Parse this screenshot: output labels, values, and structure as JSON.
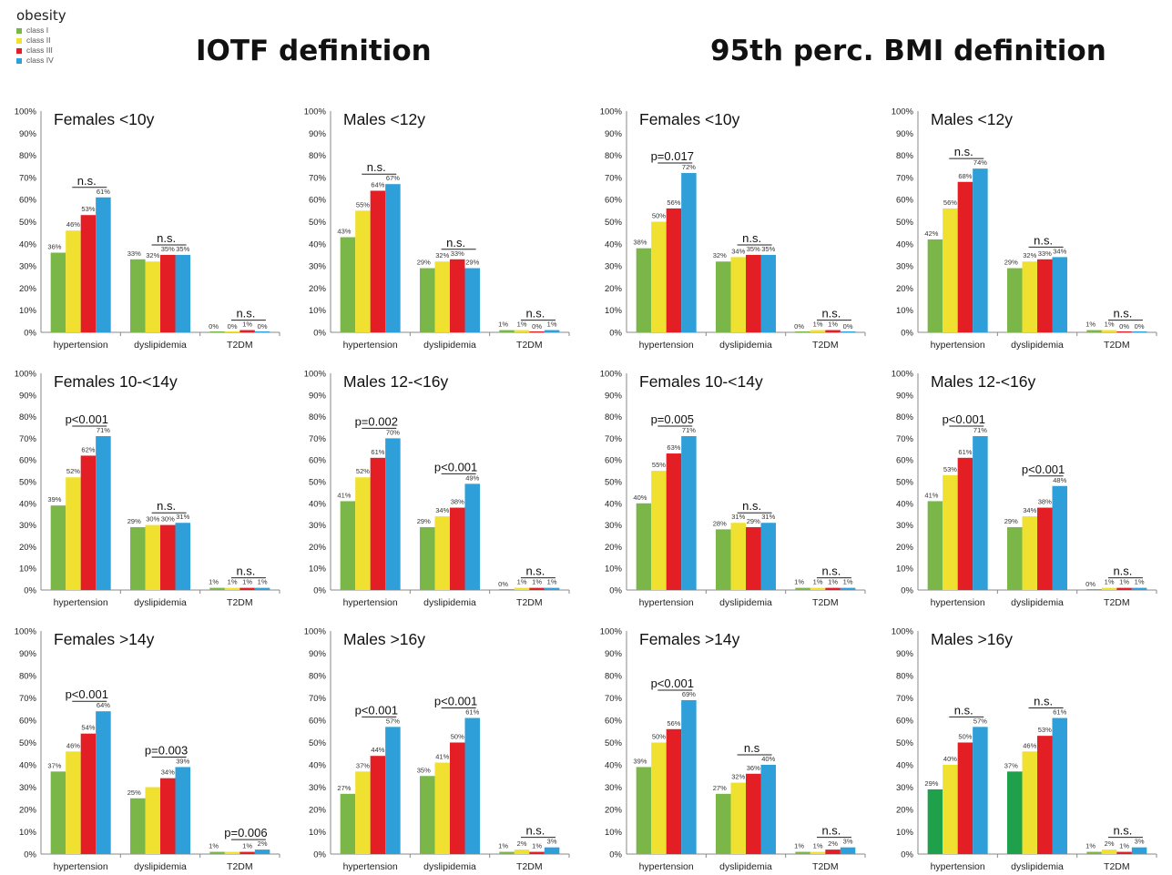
{
  "legend": {
    "title": "obesity",
    "items": [
      {
        "label": "class I",
        "color": "#7ab648"
      },
      {
        "label": "class II",
        "color": "#f0e130"
      },
      {
        "label": "class III",
        "color": "#e31e24"
      },
      {
        "label": "class IV",
        "color": "#2e9fd9"
      }
    ]
  },
  "headings": {
    "left": "IOTF definition",
    "right": "95th perc. BMI definition"
  },
  "chart_data": [
    {
      "type": "bar",
      "title": "Females <10y",
      "categories": [
        "hypertension",
        "dyslipidemia",
        "T2DM"
      ],
      "values": [
        [
          36,
          46,
          53,
          61
        ],
        [
          33,
          32,
          35,
          35
        ],
        [
          0,
          0,
          1,
          0
        ]
      ],
      "labels": [
        [
          "36%",
          "46%",
          "53%",
          "61%"
        ],
        [
          "33%",
          "32%",
          "35%",
          "35%"
        ],
        [
          "0%",
          "0%",
          "1%",
          "0%"
        ]
      ],
      "sig": [
        "n.s.",
        "n.s.",
        "n.s."
      ],
      "ylim": [
        0,
        100
      ],
      "yticks": [
        "0%",
        "10%",
        "20%",
        "30%",
        "40%",
        "50%",
        "60%",
        "70%",
        "80%",
        "90%",
        "100%"
      ]
    },
    {
      "type": "bar",
      "title": "Males <12y",
      "categories": [
        "hypertension",
        "dyslipidemia",
        "T2DM"
      ],
      "values": [
        [
          43,
          55,
          64,
          67
        ],
        [
          29,
          32,
          33,
          29
        ],
        [
          1,
          1,
          0,
          1
        ]
      ],
      "labels": [
        [
          "43%",
          "55%",
          "64%",
          "67%"
        ],
        [
          "29%",
          "32%",
          "33%",
          "29%"
        ],
        [
          "1%",
          "1%",
          "0%",
          "1%"
        ]
      ],
      "sig": [
        "n.s.",
        "n.s.",
        "n.s."
      ],
      "ylim": [
        0,
        100
      ],
      "yticks": [
        "0%",
        "10%",
        "20%",
        "30%",
        "40%",
        "50%",
        "60%",
        "70%",
        "80%",
        "90%",
        "100%"
      ]
    },
    {
      "type": "bar",
      "title": "Females <10y",
      "categories": [
        "hypertension",
        "dyslipidemia",
        "T2DM"
      ],
      "values": [
        [
          38,
          50,
          56,
          72
        ],
        [
          32,
          34,
          35,
          35
        ],
        [
          0,
          1,
          1,
          0
        ]
      ],
      "labels": [
        [
          "38%",
          "50%",
          "56%",
          "72%"
        ],
        [
          "32%",
          "34%",
          "35%",
          "35%"
        ],
        [
          "0%",
          "1%",
          "1%",
          "0%"
        ]
      ],
      "sig": [
        "p=0.017",
        "n.s.",
        "n.s."
      ],
      "ylim": [
        0,
        100
      ],
      "yticks": [
        "0%",
        "10%",
        "20%",
        "30%",
        "40%",
        "50%",
        "60%",
        "70%",
        "80%",
        "90%",
        "100%"
      ]
    },
    {
      "type": "bar",
      "title": "Males <12y",
      "categories": [
        "hypertension",
        "dyslipidemia",
        "T2DM"
      ],
      "values": [
        [
          42,
          56,
          68,
          74
        ],
        [
          29,
          32,
          33,
          34
        ],
        [
          1,
          1,
          0,
          0
        ]
      ],
      "labels": [
        [
          "42%",
          "56%",
          "68%",
          "74%"
        ],
        [
          "29%",
          "32%",
          "33%",
          "34%"
        ],
        [
          "1%",
          "1%",
          "0%",
          "0%"
        ]
      ],
      "sig": [
        "n.s.",
        "n.s.",
        "n.s."
      ],
      "ylim": [
        0,
        100
      ],
      "yticks": [
        "0%",
        "10%",
        "20%",
        "30%",
        "40%",
        "50%",
        "60%",
        "70%",
        "80%",
        "90%",
        "100%"
      ]
    },
    {
      "type": "bar",
      "title": "Females 10-<14y",
      "categories": [
        "hypertension",
        "dyslipidemia",
        "T2DM"
      ],
      "values": [
        [
          39,
          52,
          62,
          71
        ],
        [
          29,
          30,
          30,
          31
        ],
        [
          1,
          1,
          1,
          1
        ]
      ],
      "labels": [
        [
          "39%",
          "52%",
          "62%",
          "71%"
        ],
        [
          "29%",
          "30%",
          "30%",
          "31%"
        ],
        [
          "1%",
          "1%",
          "1%",
          "1%"
        ]
      ],
      "sig": [
        "p<0.001",
        "n.s.",
        "n.s."
      ],
      "ylim": [
        0,
        100
      ],
      "yticks": [
        "0%",
        "10%",
        "20%",
        "30%",
        "40%",
        "50%",
        "60%",
        "70%",
        "80%",
        "90%",
        "100%"
      ]
    },
    {
      "type": "bar",
      "title": "Males 12-<16y",
      "categories": [
        "hypertension",
        "dyslipidemia",
        "T2DM"
      ],
      "values": [
        [
          41,
          52,
          61,
          70
        ],
        [
          29,
          34,
          38,
          49
        ],
        [
          0,
          1,
          1,
          1
        ]
      ],
      "labels": [
        [
          "41%",
          "52%",
          "61%",
          "70%"
        ],
        [
          "29%",
          "34%",
          "38%",
          "49%"
        ],
        [
          "0%",
          "1%",
          "1%",
          "1%"
        ]
      ],
      "sig": [
        "p=0.002",
        "p<0.001",
        "n.s."
      ],
      "ylim": [
        0,
        100
      ],
      "yticks": [
        "0%",
        "10%",
        "20%",
        "30%",
        "40%",
        "50%",
        "60%",
        "70%",
        "80%",
        "90%",
        "100%"
      ]
    },
    {
      "type": "bar",
      "title": "Females 10-<14y",
      "categories": [
        "hypertension",
        "dyslipidemia",
        "T2DM"
      ],
      "values": [
        [
          40,
          55,
          63,
          71
        ],
        [
          28,
          31,
          29,
          31
        ],
        [
          1,
          1,
          1,
          1
        ]
      ],
      "labels": [
        [
          "40%",
          "55%",
          "63%",
          "71%"
        ],
        [
          "28%",
          "31%",
          "29%",
          "31%"
        ],
        [
          "1%",
          "1%",
          "1%",
          "1%"
        ]
      ],
      "sig": [
        "p=0.005",
        "n.s.",
        "n.s."
      ],
      "ylim": [
        0,
        100
      ],
      "yticks": [
        "0%",
        "10%",
        "20%",
        "30%",
        "40%",
        "50%",
        "60%",
        "70%",
        "80%",
        "90%",
        "100%"
      ]
    },
    {
      "type": "bar",
      "title": "Males 12-<16y",
      "categories": [
        "hypertension",
        "dyslipidemia",
        "T2DM"
      ],
      "values": [
        [
          41,
          53,
          61,
          71
        ],
        [
          29,
          34,
          38,
          48
        ],
        [
          0,
          1,
          1,
          1
        ]
      ],
      "labels": [
        [
          "41%",
          "53%",
          "61%",
          "71%"
        ],
        [
          "29%",
          "34%",
          "38%",
          "48%"
        ],
        [
          "0%",
          "1%",
          "1%",
          "1%"
        ]
      ],
      "sig": [
        "p<0.001",
        "p<0.001",
        "n.s."
      ],
      "ylim": [
        0,
        100
      ],
      "yticks": [
        "0%",
        "10%",
        "20%",
        "30%",
        "40%",
        "50%",
        "60%",
        "70%",
        "80%",
        "90%",
        "100%"
      ]
    },
    {
      "type": "bar",
      "title": "Females >14y",
      "categories": [
        "hypertension",
        "dyslipidemia",
        "T2DM"
      ],
      "values": [
        [
          37,
          46,
          54,
          64
        ],
        [
          25,
          30,
          34,
          39
        ],
        [
          1,
          1,
          1,
          2
        ]
      ],
      "labels": [
        [
          "37%",
          "46%",
          "54%",
          "64%"
        ],
        [
          "25%",
          "",
          "34%",
          "39%"
        ],
        [
          "1%",
          "",
          "1%",
          "2%"
        ]
      ],
      "sig": [
        "p<0.001",
        "p=0.003",
        "p=0.006"
      ],
      "ylim": [
        0,
        100
      ],
      "yticks": [
        "0%",
        "10%",
        "20%",
        "30%",
        "40%",
        "50%",
        "60%",
        "70%",
        "80%",
        "90%",
        "100%"
      ]
    },
    {
      "type": "bar",
      "title": "Males >16y",
      "categories": [
        "hypertension",
        "dyslipidemia",
        "T2DM"
      ],
      "values": [
        [
          27,
          37,
          44,
          57
        ],
        [
          35,
          41,
          50,
          61
        ],
        [
          1,
          2,
          1,
          3
        ]
      ],
      "labels": [
        [
          "27%",
          "37%",
          "44%",
          "57%"
        ],
        [
          "35%",
          "41%",
          "50%",
          "61%"
        ],
        [
          "1%",
          "2%",
          "1%",
          "3%"
        ]
      ],
      "sig": [
        "p<0.001",
        "p<0.001",
        "n.s."
      ],
      "ylim": [
        0,
        100
      ],
      "yticks": [
        "0%",
        "10%",
        "20%",
        "30%",
        "40%",
        "50%",
        "60%",
        "70%",
        "80%",
        "90%",
        "100%"
      ]
    },
    {
      "type": "bar",
      "title": "Females >14y",
      "categories": [
        "hypertension",
        "dyslipidemia",
        "T2DM"
      ],
      "values": [
        [
          39,
          50,
          56,
          69
        ],
        [
          27,
          32,
          36,
          40
        ],
        [
          1,
          1,
          2,
          3
        ]
      ],
      "labels": [
        [
          "39%",
          "50%",
          "56%",
          "69%"
        ],
        [
          "27%",
          "32%",
          "36%",
          "40%"
        ],
        [
          "1%",
          "1%",
          "2%",
          "3%"
        ]
      ],
      "sig": [
        "p<0.001",
        "n.s",
        "n.s."
      ],
      "ylim": [
        0,
        100
      ],
      "yticks": [
        "0%",
        "10%",
        "20%",
        "30%",
        "40%",
        "50%",
        "60%",
        "70%",
        "80%",
        "90%",
        "100%"
      ]
    },
    {
      "type": "bar",
      "title": "Males >16y",
      "categories": [
        "hypertension",
        "dyslipidemia",
        "T2DM"
      ],
      "values": [
        [
          29,
          40,
          50,
          57
        ],
        [
          37,
          46,
          53,
          61
        ],
        [
          1,
          2,
          1,
          3
        ]
      ],
      "labels": [
        [
          "29%",
          "40%",
          "50%",
          "57%"
        ],
        [
          "37%",
          "46%",
          "53%",
          "61%"
        ],
        [
          "1%",
          "2%",
          "1%",
          "3%"
        ]
      ],
      "sig": [
        "n.s.",
        "n.s.",
        "n.s."
      ],
      "ylim": [
        0,
        100
      ],
      "yticks": [
        "0%",
        "10%",
        "20%",
        "30%",
        "40%",
        "50%",
        "60%",
        "70%",
        "80%",
        "90%",
        "100%"
      ]
    }
  ]
}
